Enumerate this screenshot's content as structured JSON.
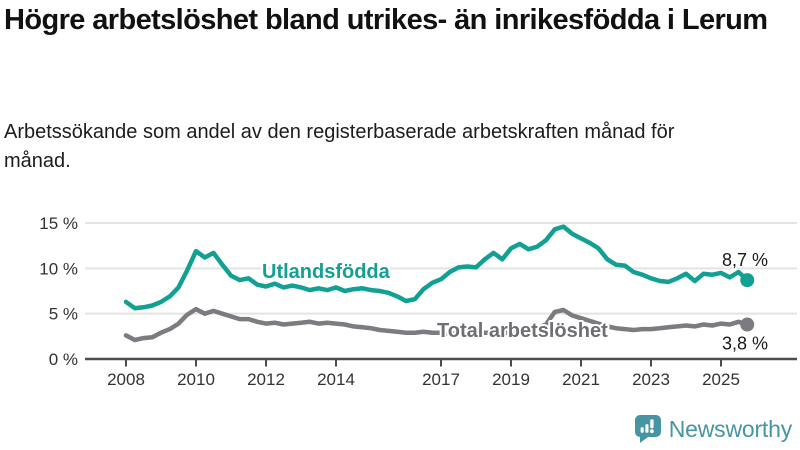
{
  "page": {
    "title": "Högre arbetslöshet bland utrikes- än inrikesfödda i Lerum",
    "subtitle": "Arbetssökande som andel av den registerbaserade arbetskraften månad för månad."
  },
  "branding": {
    "wordmark": "Newsworthy",
    "icon": "newsworthy-speech-bubble-bar-chart-icon",
    "color": "#4795a3"
  },
  "chart_data": {
    "type": "line",
    "title": "",
    "xlabel": "",
    "ylabel": "%",
    "grid": "horizontal-gridlines",
    "legend_position": "inline-labels-on-lines",
    "x_start": 2008.0,
    "x_step": 0.25,
    "xlim": [
      2006.85,
      2026.2
    ],
    "ylim": [
      0,
      16.5
    ],
    "y_ticks": [
      {
        "v": 0,
        "label": "0 %"
      },
      {
        "v": 5,
        "label": "5 %"
      },
      {
        "v": 10,
        "label": "10 %"
      },
      {
        "v": 15,
        "label": "15 %"
      }
    ],
    "x_ticks": [
      {
        "v": 2008,
        "label": "2008"
      },
      {
        "v": 2010,
        "label": "2010"
      },
      {
        "v": 2012,
        "label": "2012"
      },
      {
        "v": 2014,
        "label": "2014"
      },
      {
        "v": 2017,
        "label": "2017"
      },
      {
        "v": 2019,
        "label": "2019"
      },
      {
        "v": 2021,
        "label": "2021"
      },
      {
        "v": 2023,
        "label": "2023"
      },
      {
        "v": 2025,
        "label": "2025"
      }
    ],
    "series": [
      {
        "name": "Utlandsfödda",
        "color": "#13a094",
        "end_value": 8.7,
        "end_label": "8,7 %",
        "values": [
          6.3,
          5.6,
          5.7,
          5.9,
          6.3,
          6.9,
          7.9,
          9.8,
          11.9,
          11.2,
          11.7,
          10.4,
          9.2,
          8.7,
          8.9,
          8.2,
          8.0,
          8.3,
          7.9,
          8.1,
          7.9,
          7.6,
          7.8,
          7.6,
          7.9,
          7.5,
          7.7,
          7.8,
          7.6,
          7.5,
          7.3,
          6.9,
          6.4,
          6.6,
          7.7,
          8.4,
          8.8,
          9.6,
          10.1,
          10.2,
          10.1,
          11.0,
          11.7,
          11.0,
          12.2,
          12.7,
          12.1,
          12.4,
          13.1,
          14.3,
          14.6,
          13.8,
          13.3,
          12.8,
          12.2,
          11.0,
          10.4,
          10.3,
          9.6,
          9.3,
          8.9,
          8.6,
          8.5,
          8.9,
          9.4,
          8.6,
          9.4,
          9.3,
          9.5,
          9.0,
          9.6,
          8.7
        ]
      },
      {
        "name": "Total arbetslöshet",
        "color": "#7b7b80",
        "label_color": "#6e6e73",
        "end_value": 3.8,
        "end_label": "3,8 %",
        "values": [
          2.6,
          2.1,
          2.3,
          2.4,
          2.9,
          3.3,
          3.9,
          4.9,
          5.5,
          5.0,
          5.3,
          5.0,
          4.7,
          4.4,
          4.4,
          4.1,
          3.9,
          4.0,
          3.8,
          3.9,
          4.0,
          4.1,
          3.9,
          4.0,
          3.9,
          3.8,
          3.6,
          3.5,
          3.4,
          3.2,
          3.1,
          3.0,
          2.9,
          2.9,
          3.0,
          2.9,
          2.9,
          2.8,
          2.9,
          2.8,
          2.8,
          2.9,
          2.9,
          2.8,
          3.0,
          3.1,
          3.2,
          3.4,
          3.8,
          5.2,
          5.4,
          4.8,
          4.5,
          4.2,
          3.9,
          3.6,
          3.4,
          3.3,
          3.2,
          3.3,
          3.3,
          3.4,
          3.5,
          3.6,
          3.7,
          3.6,
          3.8,
          3.7,
          3.9,
          3.8,
          4.1,
          3.8
        ]
      }
    ]
  }
}
